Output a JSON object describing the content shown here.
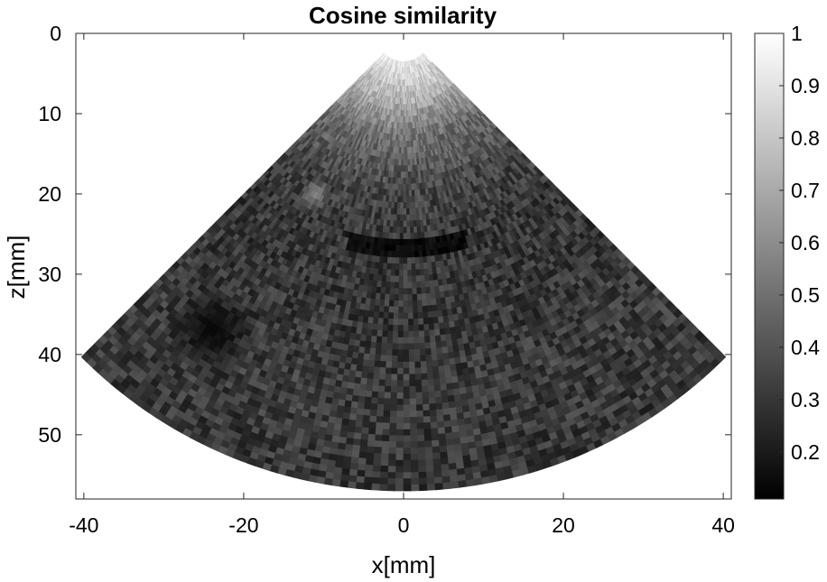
{
  "chart_data": {
    "type": "heatmap",
    "title": "Cosine similarity",
    "xlabel": "x[mm]",
    "ylabel": "z[mm]",
    "xlim": [
      -41,
      41
    ],
    "ylim": [
      0,
      58
    ],
    "y_direction": "down",
    "x_ticks": [
      -40,
      -20,
      0,
      20,
      40
    ],
    "x_tick_labels": [
      "-40",
      "-20",
      "0",
      "20",
      "40"
    ],
    "y_ticks": [
      0,
      10,
      20,
      30,
      40,
      50
    ],
    "y_tick_labels": [
      "0",
      "10",
      "20",
      "30",
      "40",
      "50"
    ],
    "colormap": "gray",
    "colorbar": {
      "range": [
        0.11,
        1.0
      ],
      "ticks": [
        0.2,
        0.3,
        0.4,
        0.5,
        0.6,
        0.7,
        0.8,
        0.9,
        1
      ],
      "tick_labels": [
        "0.2",
        "0.3",
        "0.4",
        "0.5",
        "0.6",
        "0.7",
        "0.8",
        "0.9",
        "1"
      ],
      "position": "right"
    },
    "sector": {
      "apex": [
        0,
        0
      ],
      "half_angle_deg": 45,
      "r_min": 3.5,
      "r_max": 57
    },
    "value_profile": [
      {
        "depth": 3.5,
        "value": 0.92
      },
      {
        "depth": 8,
        "value": 0.75
      },
      {
        "depth": 13,
        "value": 0.5
      },
      {
        "depth": 20,
        "value": 0.35
      },
      {
        "depth": 26,
        "value": 0.3
      },
      {
        "depth": 35,
        "value": 0.3
      },
      {
        "depth": 45,
        "value": 0.32
      },
      {
        "depth": 57,
        "value": 0.3
      }
    ],
    "features": [
      {
        "kind": "dark_band",
        "depth": 26.5,
        "x_range": [
          -7,
          8
        ],
        "value": 0.15
      },
      {
        "kind": "dark_region",
        "x": -24,
        "z": 37,
        "radius": 6,
        "value": 0.12
      },
      {
        "kind": "bright_spot",
        "x": -11,
        "z": 20,
        "radius": 2,
        "value": 0.6
      }
    ]
  }
}
